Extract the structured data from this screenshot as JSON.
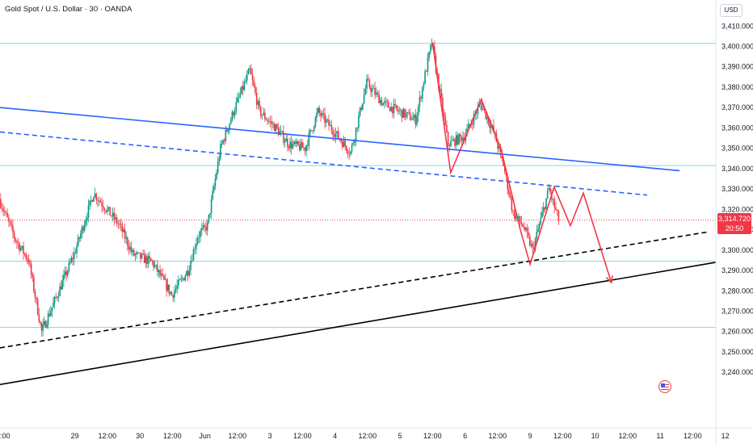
{
  "header": {
    "title": "Gold Spot / U.S. Dollar · 30 · OANDA",
    "currency": "USD"
  },
  "price_badge": {
    "price": "3,314.720",
    "countdown": "20:50"
  },
  "colors": {
    "up": "#089981",
    "down": "#f23645",
    "trendline": "#2962ff",
    "level": "#81d4e6",
    "black": "#000000",
    "projection": "#f23645"
  },
  "chart_data": {
    "type": "candlestick",
    "title": "Gold Spot / U.S. Dollar · 30 · OANDA",
    "ylim": [
      3230,
      3415
    ],
    "y_ticks": [
      "3,240.000",
      "3,250.000",
      "3,260.000",
      "3,270.000",
      "3,280.000",
      "3,290.000",
      "3,300.000",
      "3,310.000",
      "3,320.000",
      "3,330.000",
      "3,340.000",
      "3,350.000",
      "3,360.000",
      "3,370.000",
      "3,380.000",
      "3,390.000",
      "3,400.000",
      "3,410.000"
    ],
    "y_tick_values": [
      3240,
      3250,
      3260,
      3270,
      3280,
      3290,
      3300,
      3310,
      3320,
      3330,
      3340,
      3350,
      3360,
      3370,
      3380,
      3390,
      3400,
      3410
    ],
    "x_ticks": [
      ":00",
      "29",
      "12:00",
      "30",
      "12:00",
      "Jun",
      "12:00",
      "3",
      "12:00",
      "4",
      "12:00",
      "5",
      "12:00",
      "6",
      "12:00",
      "9",
      "12:00",
      "10",
      "12:00",
      "11",
      "12:00",
      "12"
    ],
    "x_tick_values": [
      0,
      1,
      1.5,
      2,
      2.5,
      3,
      3.5,
      4,
      4.5,
      5,
      5.5,
      6,
      6.5,
      7,
      7.5,
      8,
      8.5,
      9,
      9.5,
      10,
      10.5,
      11
    ],
    "xlim": [
      -0.15,
      11.1
    ],
    "waypoints": [
      [
        -0.15,
        3325
      ],
      [
        0.1,
        3305
      ],
      [
        0.3,
        3295
      ],
      [
        0.5,
        3260
      ],
      [
        0.7,
        3275
      ],
      [
        1.0,
        3298
      ],
      [
        1.3,
        3328
      ],
      [
        1.7,
        3312
      ],
      [
        1.9,
        3298
      ],
      [
        2.2,
        3294
      ],
      [
        2.5,
        3278
      ],
      [
        2.75,
        3290
      ],
      [
        2.9,
        3307
      ],
      [
        3.05,
        3312
      ],
      [
        3.25,
        3350
      ],
      [
        3.45,
        3368
      ],
      [
        3.7,
        3388
      ],
      [
        3.85,
        3368
      ],
      [
        4.1,
        3360
      ],
      [
        4.3,
        3352
      ],
      [
        4.55,
        3350
      ],
      [
        4.75,
        3368
      ],
      [
        5.0,
        3358
      ],
      [
        5.25,
        3348
      ],
      [
        5.5,
        3382
      ],
      [
        5.75,
        3372
      ],
      [
        6.0,
        3368
      ],
      [
        6.25,
        3364
      ],
      [
        6.5,
        3402
      ],
      [
        6.75,
        3352
      ],
      [
        7.0,
        3356
      ],
      [
        7.25,
        3372
      ],
      [
        7.45,
        3358
      ],
      [
        7.6,
        3342
      ],
      [
        7.75,
        3318
      ],
      [
        7.9,
        3312
      ],
      [
        8.05,
        3300
      ],
      [
        8.3,
        3330
      ],
      [
        8.45,
        3314.72
      ]
    ],
    "level_lines": [
      3401.5,
      3341.5,
      3294.5,
      3262
    ],
    "current_price": 3314.72,
    "trendlines": [
      {
        "name": "upper-blue-solid",
        "points": [
          [
            -0.15,
            3370
          ],
          [
            10.3,
            3339
          ]
        ],
        "style": "solid",
        "color": "#2962ff"
      },
      {
        "name": "upper-blue-dashed",
        "points": [
          [
            -0.15,
            3358
          ],
          [
            9.8,
            3327
          ]
        ],
        "style": "dashed",
        "color": "#2962ff"
      },
      {
        "name": "lower-black-dashed",
        "points": [
          [
            -0.15,
            3252
          ],
          [
            10.75,
            3309
          ]
        ],
        "style": "dashed",
        "color": "#000000"
      },
      {
        "name": "lower-black-solid",
        "points": [
          [
            -0.15,
            3234
          ],
          [
            11.45,
            3294
          ]
        ],
        "style": "solid",
        "color": "#000000"
      }
    ],
    "pattern_paths": [
      {
        "name": "red-zigzag",
        "points": [
          [
            6.5,
            3402
          ],
          [
            6.78,
            3338
          ],
          [
            7.25,
            3374
          ],
          [
            7.55,
            3350
          ],
          [
            7.85,
            3310
          ],
          [
            8.0,
            3293
          ],
          [
            8.37,
            3331
          ],
          [
            8.62,
            3312
          ],
          [
            8.82,
            3328
          ],
          [
            9.25,
            3284
          ]
        ],
        "arrow": true
      }
    ],
    "grid": false,
    "legend": "none"
  }
}
